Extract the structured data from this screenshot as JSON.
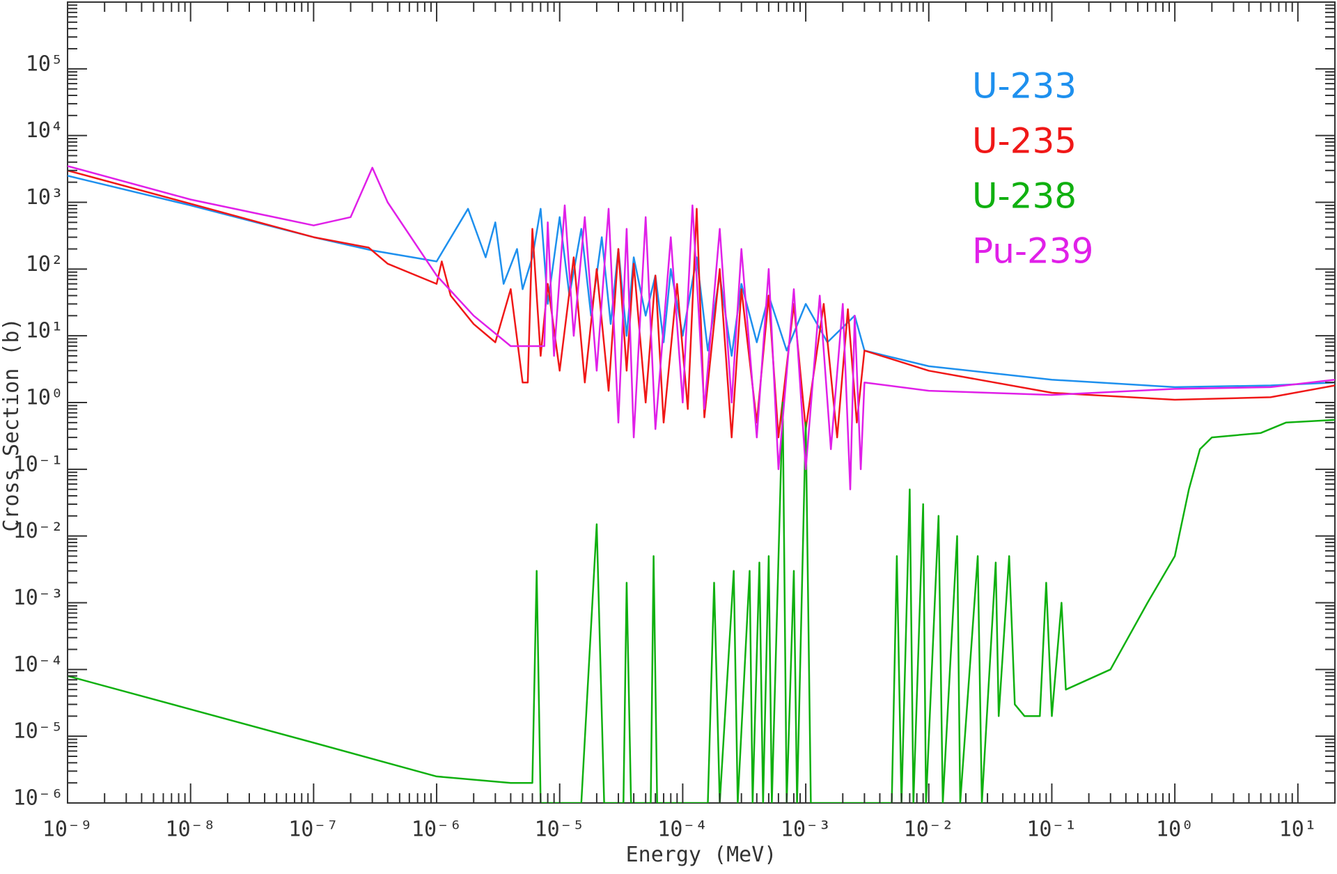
{
  "chart_data": {
    "type": "line",
    "x_label": "Energy (MeV)",
    "y_label": "Cross Section (b)",
    "xscale": "log",
    "yscale": "log",
    "xlim": [
      1e-09,
      20
    ],
    "ylim": [
      1e-06,
      1000000.0
    ],
    "xticks": [
      {
        "value": 1e-09,
        "label": "10⁻⁹"
      },
      {
        "value": 1e-08,
        "label": "10⁻⁸"
      },
      {
        "value": 1e-07,
        "label": "10⁻⁷"
      },
      {
        "value": 1e-06,
        "label": "10⁻⁶"
      },
      {
        "value": 1e-05,
        "label": "10⁻⁵"
      },
      {
        "value": 0.0001,
        "label": "10⁻⁴"
      },
      {
        "value": 0.001,
        "label": "10⁻³"
      },
      {
        "value": 0.01,
        "label": "10⁻²"
      },
      {
        "value": 0.1,
        "label": "10⁻¹"
      },
      {
        "value": 1,
        "label": "10⁰"
      },
      {
        "value": 10,
        "label": "10¹"
      }
    ],
    "yticks": [
      {
        "value": 1e-06,
        "label": "10⁻⁶"
      },
      {
        "value": 1e-05,
        "label": "10⁻⁵"
      },
      {
        "value": 0.0001,
        "label": "10⁻⁴"
      },
      {
        "value": 0.001,
        "label": "10⁻³"
      },
      {
        "value": 0.01,
        "label": "10⁻²"
      },
      {
        "value": 0.1,
        "label": "10⁻¹"
      },
      {
        "value": 1,
        "label": "10⁰"
      },
      {
        "value": 10,
        "label": "10¹"
      },
      {
        "value": 100,
        "label": "10²"
      },
      {
        "value": 1000,
        "label": "10³"
      },
      {
        "value": 10000,
        "label": "10⁴"
      },
      {
        "value": 100000,
        "label": "10⁵"
      }
    ],
    "series": [
      {
        "name": "U-233",
        "color": "#1e90ee",
        "x": [
          1e-09,
          1e-08,
          1e-07,
          3e-07,
          1e-06,
          1.8e-06,
          2.5e-06,
          3e-06,
          3.5e-06,
          4.5e-06,
          5e-06,
          6e-06,
          7e-06,
          8e-06,
          1e-05,
          1.2e-05,
          1.5e-05,
          1.8e-05,
          2.2e-05,
          2.6e-05,
          3e-05,
          3.5e-05,
          4e-05,
          5e-05,
          6e-05,
          7e-05,
          8e-05,
          0.0001,
          0.00013,
          0.00016,
          0.0002,
          0.00025,
          0.0003,
          0.0004,
          0.0005,
          0.0007,
          0.001,
          0.0015,
          0.0025,
          0.003,
          0.01,
          0.1,
          1,
          6,
          20
        ],
        "values": [
          2500,
          900,
          300,
          190,
          130,
          800,
          150,
          500,
          60,
          200,
          50,
          150,
          800,
          30,
          600,
          40,
          400,
          20,
          300,
          15,
          200,
          10,
          150,
          20,
          80,
          8,
          100,
          10,
          150,
          6,
          80,
          5,
          60,
          8,
          40,
          6,
          30,
          8,
          20,
          6,
          3.5,
          2.2,
          1.7,
          1.8,
          2
        ]
      },
      {
        "name": "U-235",
        "color": "#f01818",
        "x": [
          1e-09,
          1e-08,
          1e-07,
          2.8e-07,
          4e-07,
          1e-06,
          1.1e-06,
          1.3e-06,
          2e-06,
          3e-06,
          4e-06,
          5e-06,
          5.5e-06,
          6e-06,
          7e-06,
          8e-06,
          1e-05,
          1.3e-05,
          1.6e-05,
          2e-05,
          2.5e-05,
          3e-05,
          3.5e-05,
          4e-05,
          5e-05,
          6e-05,
          7e-05,
          9e-05,
          0.00011,
          0.00013,
          0.00015,
          0.0002,
          0.00025,
          0.0003,
          0.0004,
          0.0005,
          0.0006,
          0.0008,
          0.001,
          0.0014,
          0.0018,
          0.0022,
          0.0026,
          0.003,
          0.01,
          0.1,
          1,
          6,
          20
        ],
        "values": [
          3000,
          950,
          300,
          210,
          120,
          60,
          130,
          40,
          15,
          8,
          50,
          2,
          2,
          400,
          5,
          60,
          3,
          150,
          2,
          100,
          1.5,
          200,
          3,
          120,
          1,
          80,
          0.5,
          60,
          0.8,
          800,
          0.6,
          100,
          0.3,
          50,
          0.5,
          40,
          0.3,
          30,
          0.4,
          30,
          0.3,
          25,
          0.5,
          6,
          3,
          1.4,
          1.1,
          1.2,
          1.8
        ]
      },
      {
        "name": "U-238",
        "color": "#10b010",
        "x": [
          1e-09,
          1e-07,
          1e-06,
          4e-06,
          6e-06,
          6.5e-06,
          7e-06,
          1.5e-05,
          2e-05,
          2.3e-05,
          3.3e-05,
          3.5e-05,
          3.8e-05,
          5.5e-05,
          5.8e-05,
          6.2e-05,
          0.00016,
          0.00018,
          0.0002,
          0.00026,
          0.00028,
          0.00035,
          0.00037,
          0.00042,
          0.00045,
          0.0005,
          0.00053,
          0.00065,
          0.0007,
          0.0008,
          0.00085,
          0.001,
          0.0011,
          0.005,
          0.0055,
          0.006,
          0.007,
          0.0075,
          0.009,
          0.0095,
          0.012,
          0.013,
          0.017,
          0.018,
          0.025,
          0.027,
          0.035,
          0.037,
          0.045,
          0.05,
          0.06,
          0.08,
          0.09,
          0.1,
          0.12,
          0.13,
          0.3,
          0.6,
          1,
          1.3,
          1.6,
          2,
          5,
          8,
          20
        ],
        "values": [
          8e-05,
          8e-06,
          2.5e-06,
          2e-06,
          2e-06,
          0.003,
          1e-06,
          1e-06,
          0.015,
          1e-06,
          1e-06,
          0.002,
          1e-06,
          1e-06,
          0.005,
          1e-06,
          1e-06,
          0.002,
          1e-06,
          0.003,
          1e-06,
          0.003,
          1e-06,
          0.004,
          1e-06,
          0.005,
          1e-06,
          1,
          1e-06,
          0.003,
          1e-06,
          0.5,
          1e-06,
          1e-06,
          0.005,
          1e-06,
          0.05,
          1e-06,
          0.03,
          1e-06,
          0.02,
          1e-06,
          0.01,
          1e-06,
          0.005,
          1e-06,
          0.004,
          2e-05,
          0.005,
          3e-05,
          2e-05,
          2e-05,
          0.002,
          2e-05,
          0.001,
          5e-05,
          0.0001,
          0.001,
          0.005,
          0.05,
          0.2,
          0.3,
          0.35,
          0.5,
          0.55
        ]
      },
      {
        "name": "Pu-239",
        "color": "#e020e8",
        "x": [
          1e-09,
          1e-08,
          1e-07,
          2e-07,
          3e-07,
          4e-07,
          1e-06,
          2e-06,
          4e-06,
          7e-06,
          7.5e-06,
          8e-06,
          9e-06,
          1.1e-05,
          1.3e-05,
          1.6e-05,
          2e-05,
          2.5e-05,
          3e-05,
          3.5e-05,
          4e-05,
          5e-05,
          6e-05,
          8e-05,
          0.0001,
          0.00012,
          0.00015,
          0.0002,
          0.00025,
          0.0003,
          0.0004,
          0.0005,
          0.0006,
          0.0008,
          0.001,
          0.0013,
          0.0016,
          0.002,
          0.0023,
          0.0025,
          0.0028,
          0.003,
          0.01,
          0.1,
          1,
          6,
          20
        ],
        "values": [
          3500,
          1100,
          450,
          600,
          3300,
          1000,
          80,
          20,
          7,
          7,
          7,
          500,
          5,
          900,
          10,
          600,
          3,
          800,
          0.5,
          400,
          0.3,
          600,
          0.4,
          300,
          1,
          900,
          0.8,
          400,
          1,
          200,
          0.3,
          100,
          0.1,
          50,
          0.1,
          40,
          0.2,
          30,
          0.05,
          20,
          0.1,
          2,
          1.5,
          1.3,
          1.6,
          1.7,
          2.2
        ]
      }
    ]
  }
}
